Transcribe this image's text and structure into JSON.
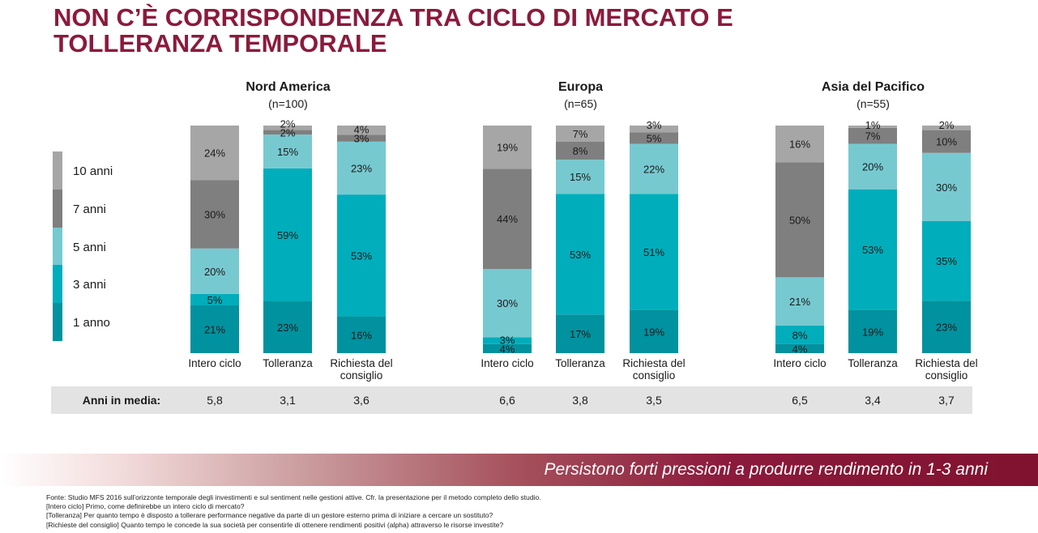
{
  "title": {
    "line1": "NON C’È CORRISPONDENZA TRA CICLO DI MERCATO E",
    "line2": "TOLLERANZA TEMPORALE"
  },
  "colors": {
    "title": "#8b1a3c",
    "10 anni": "#a6a6a6",
    "7 anni": "#7f7f7f",
    "5 anni": "#77c9d0",
    "3 anni": "#00adbb",
    "1 anno": "#00929e",
    "avg_band": "#e3e3e3"
  },
  "chart_data": {
    "type": "bar",
    "stacked": true,
    "normalized_percent": true,
    "legend_position": "left",
    "legend": [
      "10 anni",
      "7 anni",
      "5 anni",
      "3 anni",
      "1 anno"
    ],
    "categories": [
      "Intero ciclo",
      "Tolleranza",
      "Richiesta del consiglio"
    ],
    "panels": [
      {
        "region": "Nord America",
        "n": "(n=100)",
        "bars": [
          {
            "category": "Intero ciclo",
            "1 anno": 21,
            "3 anni": 5,
            "5 anni": 20,
            "7 anni": 30,
            "10 anni": 24
          },
          {
            "category": "Tolleranza",
            "1 anno": 23,
            "3 anni": 59,
            "5 anni": 15,
            "7 anni": 2,
            "10 anni": 2
          },
          {
            "category": "Richiesta del consiglio",
            "1 anno": 16,
            "3 anni": 53,
            "5 anni": 23,
            "7 anni": 3,
            "10 anni": 4
          }
        ],
        "averages": [
          "5,8",
          "3,1",
          "3,6"
        ]
      },
      {
        "region": "Europa",
        "n": "(n=65)",
        "bars": [
          {
            "category": "Intero ciclo",
            "1 anno": 4,
            "3 anni": 3,
            "5 anni": 30,
            "7 anni": 44,
            "10 anni": 19
          },
          {
            "category": "Tolleranza",
            "1 anno": 17,
            "3 anni": 53,
            "5 anni": 15,
            "7 anni": 8,
            "10 anni": 7
          },
          {
            "category": "Richiesta del consiglio",
            "1 anno": 19,
            "3 anni": 51,
            "5 anni": 22,
            "7 anni": 5,
            "10 anni": 3
          }
        ],
        "averages": [
          "6,6",
          "3,8",
          "3,5"
        ]
      },
      {
        "region": "Asia del Pacifico",
        "n": "(n=55)",
        "bars": [
          {
            "category": "Intero ciclo",
            "1 anno": 4,
            "3 anni": 8,
            "5 anni": 21,
            "7 anni": 50,
            "10 anni": 16
          },
          {
            "category": "Tolleranza",
            "1 anno": 19,
            "3 anni": 53,
            "5 anni": 20,
            "7 anni": 7,
            "10 anni": 1
          },
          {
            "category": "Richiesta del consiglio",
            "1 anno": 23,
            "3 anni": 35,
            "5 anni": 30,
            "7 anni": 10,
            "10 anni": 2
          }
        ],
        "averages": [
          "6,5",
          "3,4",
          "3,7"
        ]
      }
    ],
    "avg_label": "Anni in media:"
  },
  "banner": {
    "text": "Persistono forti pressioni a produrre rendimento in 1-3 anni"
  },
  "footnotes": [
    "Fonte: Studio MFS 2016 sull'orizzonte temporale degli investimenti e sul sentiment nelle gestioni attive. Cfr. la presentazione per il metodo completo dello studio.",
    "[Intero ciclo] Primo, come definirebbe un intero ciclo di mercato?",
    "[Tolleranza] Per quanto tempo è disposto a tollerare performance negative da parte di un gestore esterno prima di iniziare a cercare un sostituto?",
    "[Richieste del consiglio] Quanto tempo le concede la sua società per consentirle di ottenere rendimenti positivi (alpha) attraverso le risorse investite?"
  ]
}
